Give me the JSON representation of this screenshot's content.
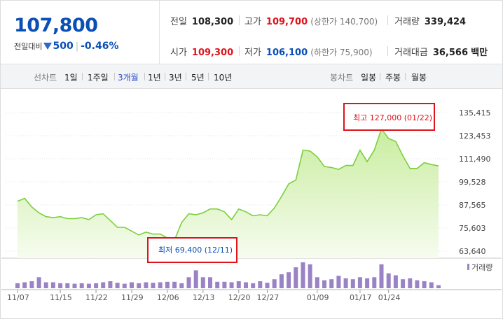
{
  "quote": {
    "price": "107,800",
    "change_label": "전일대비",
    "change_value": "500",
    "change_rate": "-0.46%"
  },
  "stats": {
    "prev_close": {
      "label": "전일",
      "value": "108,300"
    },
    "high": {
      "label": "고가",
      "value": "109,700",
      "sub": "(상한가 140,700)"
    },
    "volume": {
      "label": "거래량",
      "value": "339,424"
    },
    "open": {
      "label": "시가",
      "value": "109,300"
    },
    "low": {
      "label": "저가",
      "value": "106,100",
      "sub": "(하한가 75,900)"
    },
    "amount": {
      "label": "거래대금",
      "value": "36,566",
      "unit": "백만"
    }
  },
  "toolbar": {
    "line_chart_label": "선차트",
    "periods": [
      "1일",
      "1주일",
      "3개월",
      "1년",
      "3년",
      "5년",
      "10년"
    ],
    "active_period": "3개월",
    "candle_label": "봉차트",
    "candles": [
      "일봉",
      "주봉",
      "월봉"
    ]
  },
  "colors": {
    "up": "#e0121b",
    "down": "#0a4fb5",
    "line": "#7ccf3f",
    "area": "#e4f6d4",
    "volume": "#9a83c4",
    "callout_border": "#e0121b"
  },
  "chart_data": {
    "type": "area",
    "y_ticks": [
      "135,415",
      "123,453",
      "111,490",
      "99,528",
      "87,565",
      "75,603",
      "63,640"
    ],
    "ylim": [
      63640,
      135415
    ],
    "x_tick_labels": [
      "11/07",
      "11/15",
      "11/22",
      "11/29",
      "12/06",
      "12/13",
      "12/20",
      "12/27",
      "01/09",
      "01/17",
      "01/24"
    ],
    "x_tick_index": [
      0,
      6,
      11,
      16,
      21,
      26,
      31,
      35,
      42,
      48,
      52
    ],
    "prices": [
      89500,
      91000,
      86500,
      83500,
      81500,
      81000,
      81500,
      80500,
      80500,
      81000,
      80000,
      82500,
      83000,
      79500,
      76000,
      76000,
      74000,
      72000,
      73500,
      72500,
      72500,
      70500,
      69400,
      78500,
      83000,
      82500,
      83500,
      85500,
      85500,
      84000,
      80000,
      85500,
      84000,
      82000,
      82500,
      82000,
      86000,
      92000,
      98500,
      100500,
      116000,
      115500,
      112500,
      107500,
      107000,
      106000,
      108000,
      108000,
      116000,
      110000,
      116000,
      127000,
      122000,
      120500,
      113000,
      106500,
      106500,
      109500,
      108500,
      107800
    ],
    "volume_series_label": "거래량",
    "volumes": [
      10,
      12,
      14,
      22,
      12,
      12,
      10,
      10,
      9,
      10,
      9,
      10,
      12,
      14,
      11,
      9,
      12,
      10,
      12,
      11,
      12,
      13,
      13,
      10,
      22,
      36,
      22,
      22,
      13,
      13,
      12,
      14,
      12,
      10,
      14,
      11,
      18,
      28,
      32,
      42,
      52,
      48,
      22,
      16,
      18,
      25,
      20,
      18,
      22,
      20,
      22,
      48,
      30,
      26,
      18,
      20,
      16,
      14,
      12,
      6
    ],
    "max_label": "최고 127,000 (01/22)",
    "min_label": "최저 69,400 (12/11)"
  }
}
